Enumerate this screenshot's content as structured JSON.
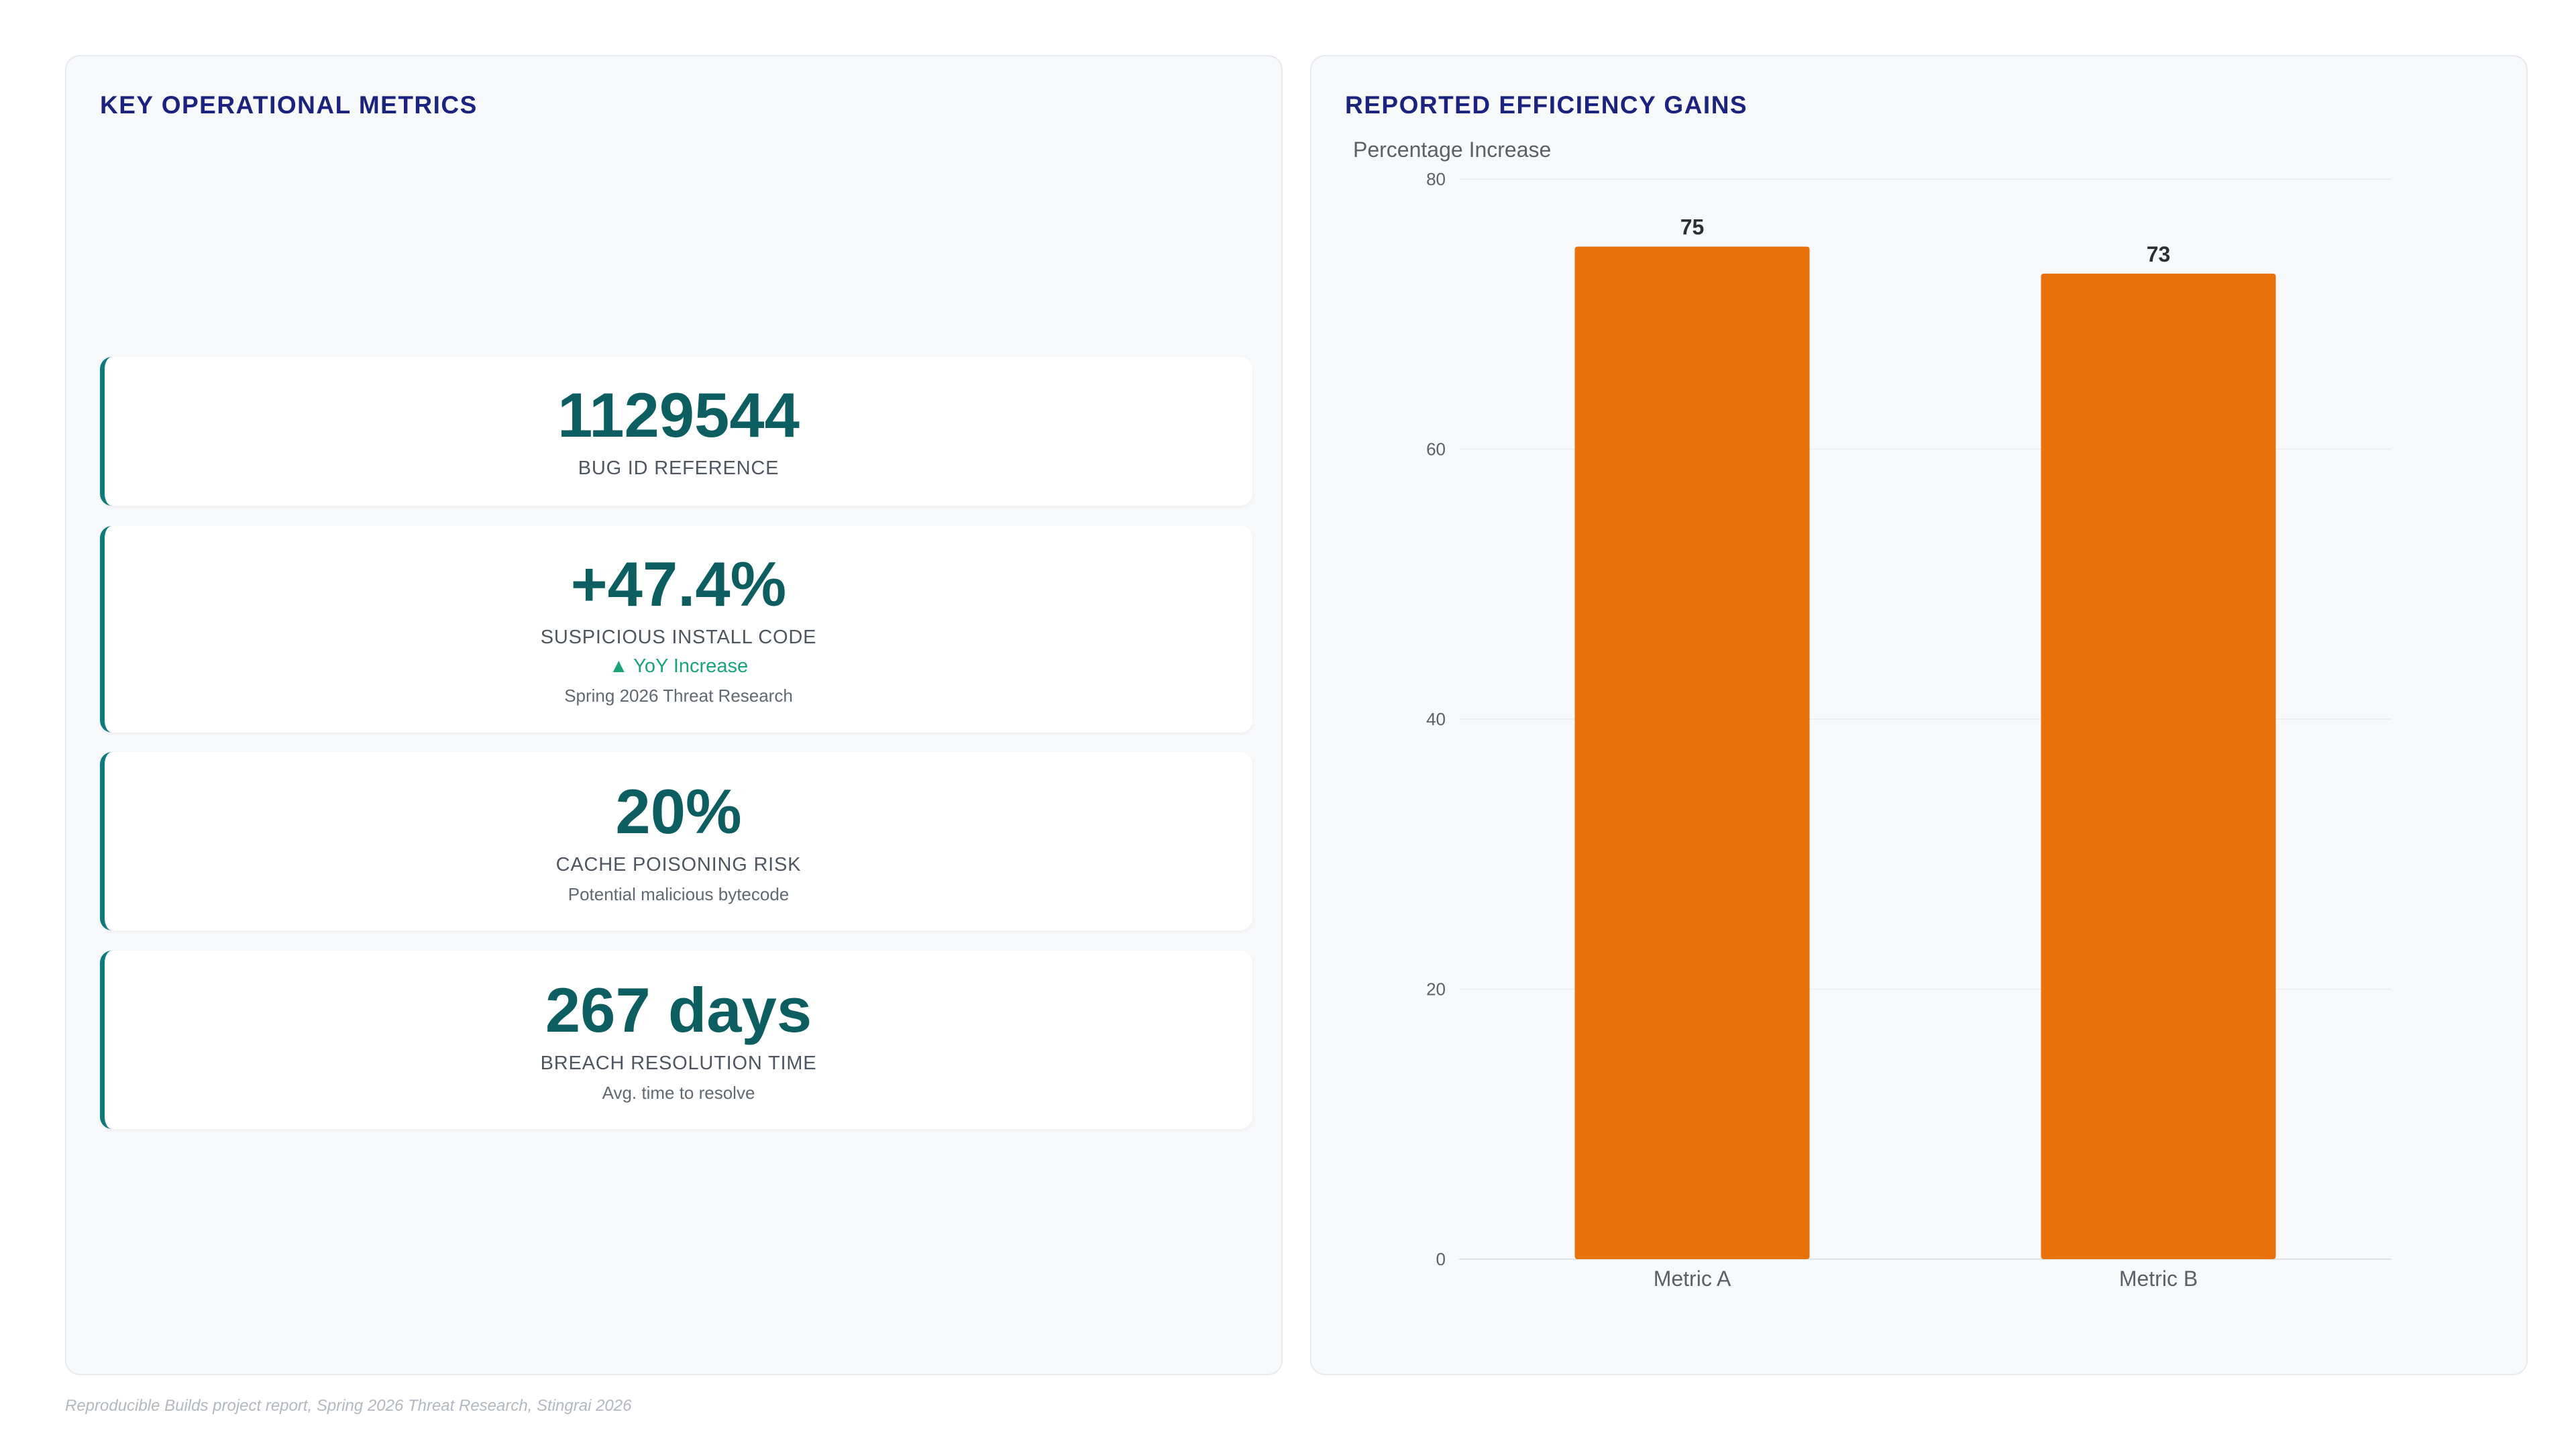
{
  "left_panel": {
    "title": "KEY OPERATIONAL METRICS",
    "cards": [
      {
        "value": "1129544",
        "label": "BUG ID REFERENCE"
      },
      {
        "value": "+47.4%",
        "label": "SUSPICIOUS INSTALL CODE",
        "trend": "▲ YoY Increase",
        "sub": "Spring 2026 Threat Research"
      },
      {
        "value": "20%",
        "label": "CACHE POISONING RISK",
        "sub": "Potential malicious bytecode"
      },
      {
        "value": "267 days",
        "label": "BREACH RESOLUTION TIME",
        "sub": "Avg. time to resolve"
      }
    ]
  },
  "right_panel": {
    "title": "REPORTED EFFICIENCY GAINS"
  },
  "chart_data": {
    "type": "bar",
    "categories": [
      "Metric A",
      "Metric B"
    ],
    "values": [
      75,
      73
    ],
    "title": "",
    "xlabel": "",
    "ylabel": "Percentage Increase",
    "ylim": [
      0,
      80
    ],
    "yticks": [
      0,
      20,
      40,
      60,
      80
    ],
    "grid": true,
    "bar_color": "#e8710a",
    "data_labels": true
  },
  "footer": "Reproducible Builds project report, Spring 2026 Threat Research, Stingrai 2026",
  "colors": {
    "title": "#1a237e",
    "accent": "#0f7a7c",
    "value": "#0d5e60",
    "trend_up": "#1aa37a",
    "bar": "#e8710a"
  }
}
